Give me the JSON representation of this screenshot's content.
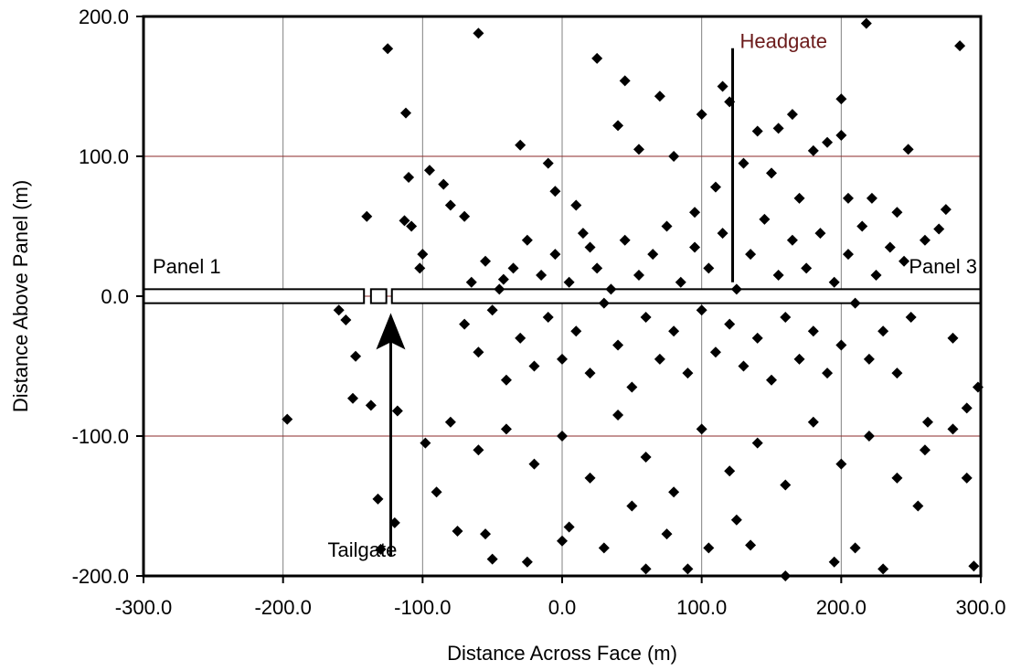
{
  "chart_data": {
    "type": "scatter",
    "title": "",
    "xlabel": "Distance Across Face (m)",
    "ylabel": "Distance Above Panel (m)",
    "xlim": [
      -300,
      300
    ],
    "ylim": [
      -200,
      200
    ],
    "x_ticks": [
      -300,
      -200,
      -100,
      0,
      100,
      200,
      300
    ],
    "y_ticks": [
      -200,
      -100,
      0,
      100,
      200
    ],
    "x_tick_labels": [
      "-300.0",
      "-200.0",
      "-100.0",
      "0.0",
      "100.0",
      "200.0",
      "300.0"
    ],
    "y_tick_labels": [
      "-200.0",
      "-100.0",
      "0.0",
      "100.0",
      "200.0"
    ],
    "grid": {
      "vertical": true,
      "horizontal": true,
      "vertical_color": "#808080",
      "horizontal_color": "#8b2a2a"
    },
    "marker": {
      "shape": "diamond",
      "color": "#000000"
    },
    "points_note_free": true,
    "series": [
      {
        "points": [
          [
            -197,
            -88
          ],
          [
            -160,
            -10
          ],
          [
            -155,
            -17
          ],
          [
            -148,
            -43
          ],
          [
            -150,
            -73
          ],
          [
            -140,
            57
          ],
          [
            -137,
            -78
          ],
          [
            -132,
            -145
          ],
          [
            -130,
            -181
          ],
          [
            -125,
            177
          ],
          [
            -120,
            -162
          ],
          [
            -118,
            -82
          ],
          [
            -112,
            131
          ],
          [
            -113,
            54
          ],
          [
            -110,
            85
          ],
          [
            -108,
            50
          ],
          [
            -102,
            20
          ],
          [
            -100,
            30
          ],
          [
            -98,
            -105
          ],
          [
            -95,
            90
          ],
          [
            -90,
            -140
          ],
          [
            -85,
            80
          ],
          [
            -80,
            65
          ],
          [
            -75,
            -168
          ],
          [
            -70,
            57
          ],
          [
            -60,
            188
          ],
          [
            -55,
            -170
          ],
          [
            -50,
            -188
          ],
          [
            -42,
            12
          ],
          [
            -30,
            108
          ],
          [
            -25,
            -190
          ],
          [
            -10,
            95
          ],
          [
            -5,
            75
          ],
          [
            0,
            -175
          ],
          [
            5,
            -165
          ],
          [
            10,
            65
          ],
          [
            20,
            35
          ],
          [
            25,
            170
          ],
          [
            30,
            -180
          ],
          [
            40,
            122
          ],
          [
            45,
            154
          ],
          [
            50,
            -150
          ],
          [
            55,
            105
          ],
          [
            60,
            -195
          ],
          [
            70,
            143
          ],
          [
            75,
            -170
          ],
          [
            80,
            100
          ],
          [
            90,
            -195
          ],
          [
            95,
            60
          ],
          [
            100,
            130
          ],
          [
            105,
            -180
          ],
          [
            110,
            78
          ],
          [
            115,
            150
          ],
          [
            120,
            139
          ],
          [
            125,
            -160
          ],
          [
            130,
            95
          ],
          [
            135,
            -178
          ],
          [
            140,
            118
          ],
          [
            150,
            88
          ],
          [
            155,
            120
          ],
          [
            160,
            -200
          ],
          [
            165,
            130
          ],
          [
            170,
            70
          ],
          [
            180,
            104
          ],
          [
            190,
            110
          ],
          [
            195,
            -190
          ],
          [
            200,
            141
          ],
          [
            200,
            115
          ],
          [
            205,
            70
          ],
          [
            210,
            -180
          ],
          [
            218,
            195
          ],
          [
            222,
            70
          ],
          [
            230,
            -195
          ],
          [
            240,
            60
          ],
          [
            248,
            105
          ],
          [
            255,
            -150
          ],
          [
            262,
            -90
          ],
          [
            270,
            48
          ],
          [
            275,
            62
          ],
          [
            285,
            179
          ],
          [
            290,
            -130
          ],
          [
            295,
            -193
          ],
          [
            298,
            -65
          ],
          [
            -70,
            -20
          ],
          [
            -60,
            -40
          ],
          [
            -50,
            -10
          ],
          [
            -40,
            -60
          ],
          [
            -30,
            -30
          ],
          [
            -20,
            -50
          ],
          [
            -10,
            -15
          ],
          [
            0,
            -45
          ],
          [
            10,
            -25
          ],
          [
            20,
            -55
          ],
          [
            30,
            -5
          ],
          [
            40,
            -35
          ],
          [
            50,
            -65
          ],
          [
            60,
            -15
          ],
          [
            70,
            -45
          ],
          [
            80,
            -25
          ],
          [
            90,
            -55
          ],
          [
            100,
            -10
          ],
          [
            110,
            -40
          ],
          [
            120,
            -20
          ],
          [
            130,
            -50
          ],
          [
            140,
            -30
          ],
          [
            150,
            -60
          ],
          [
            160,
            -15
          ],
          [
            170,
            -45
          ],
          [
            180,
            -25
          ],
          [
            190,
            -55
          ],
          [
            200,
            -35
          ],
          [
            210,
            -5
          ],
          [
            220,
            -45
          ],
          [
            230,
            -25
          ],
          [
            240,
            -55
          ],
          [
            250,
            -15
          ],
          [
            -65,
            10
          ],
          [
            -55,
            25
          ],
          [
            -45,
            5
          ],
          [
            -35,
            20
          ],
          [
            -25,
            40
          ],
          [
            -15,
            15
          ],
          [
            -5,
            30
          ],
          [
            5,
            10
          ],
          [
            15,
            45
          ],
          [
            25,
            20
          ],
          [
            35,
            5
          ],
          [
            45,
            40
          ],
          [
            55,
            15
          ],
          [
            65,
            30
          ],
          [
            75,
            50
          ],
          [
            85,
            10
          ],
          [
            95,
            35
          ],
          [
            105,
            20
          ],
          [
            115,
            45
          ],
          [
            125,
            5
          ],
          [
            135,
            30
          ],
          [
            145,
            55
          ],
          [
            155,
            15
          ],
          [
            165,
            40
          ],
          [
            175,
            20
          ],
          [
            185,
            45
          ],
          [
            195,
            10
          ],
          [
            205,
            30
          ],
          [
            215,
            50
          ],
          [
            225,
            15
          ],
          [
            235,
            35
          ],
          [
            245,
            25
          ],
          [
            260,
            40
          ],
          [
            280,
            -30
          ],
          [
            290,
            -80
          ],
          [
            -80,
            -90
          ],
          [
            -60,
            -110
          ],
          [
            -40,
            -95
          ],
          [
            -20,
            -120
          ],
          [
            0,
            -100
          ],
          [
            20,
            -130
          ],
          [
            40,
            -85
          ],
          [
            60,
            -115
          ],
          [
            80,
            -140
          ],
          [
            100,
            -95
          ],
          [
            120,
            -125
          ],
          [
            140,
            -105
          ],
          [
            160,
            -135
          ],
          [
            180,
            -90
          ],
          [
            200,
            -120
          ],
          [
            220,
            -100
          ],
          [
            240,
            -130
          ],
          [
            260,
            -110
          ],
          [
            280,
            -95
          ]
        ]
      }
    ],
    "annotations": [
      {
        "text": "Headgate",
        "x": 132,
        "y": 176,
        "color": "#6b1a1a",
        "line_from_y": 10
      },
      {
        "text": "Tailgate",
        "x": -132,
        "y": -185,
        "color": "#000000",
        "arrow_to_y": -12
      },
      {
        "text": "Panel 1",
        "x": -295,
        "y": 12,
        "color": "#000000"
      },
      {
        "text": "Panel 3",
        "x": 295,
        "y": 12,
        "color": "#000000"
      }
    ],
    "panels": [
      {
        "x_start": -300,
        "x_end": -142,
        "y_top": 5,
        "y_bottom": -5
      },
      {
        "x_start": -137,
        "x_end": -126,
        "y_top": 5,
        "y_bottom": -5
      },
      {
        "x_start": -122,
        "x_end": 300,
        "y_top": 5,
        "y_bottom": -5
      }
    ]
  }
}
